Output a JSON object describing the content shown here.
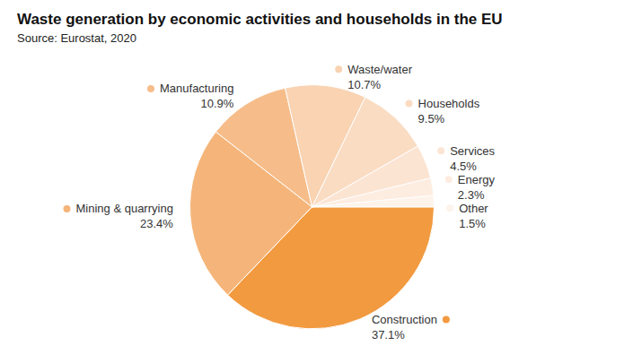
{
  "chart_data": {
    "type": "pie",
    "title": "Waste generation by economic activities and households in the EU",
    "subtitle": "Source: Eurostat, 2020",
    "categories": [
      "Construction",
      "Mining & quarrying",
      "Manufacturing",
      "Waste/water",
      "Households",
      "Services",
      "Energy",
      "Other"
    ],
    "values": [
      37.1,
      23.4,
      10.9,
      10.7,
      9.5,
      4.5,
      2.3,
      1.5
    ],
    "value_labels": [
      "37.1%",
      "23.4%",
      "10.9%",
      "10.7%",
      "9.5%",
      "4.5%",
      "2.3%",
      "1.5%"
    ],
    "colors": [
      "#f29a3f",
      "#f5b57a",
      "#f6bd8a",
      "#f9d3b2",
      "#fadcc3",
      "#fce4d2",
      "#fdece0",
      "#fef3ea"
    ],
    "data_labels": true
  }
}
